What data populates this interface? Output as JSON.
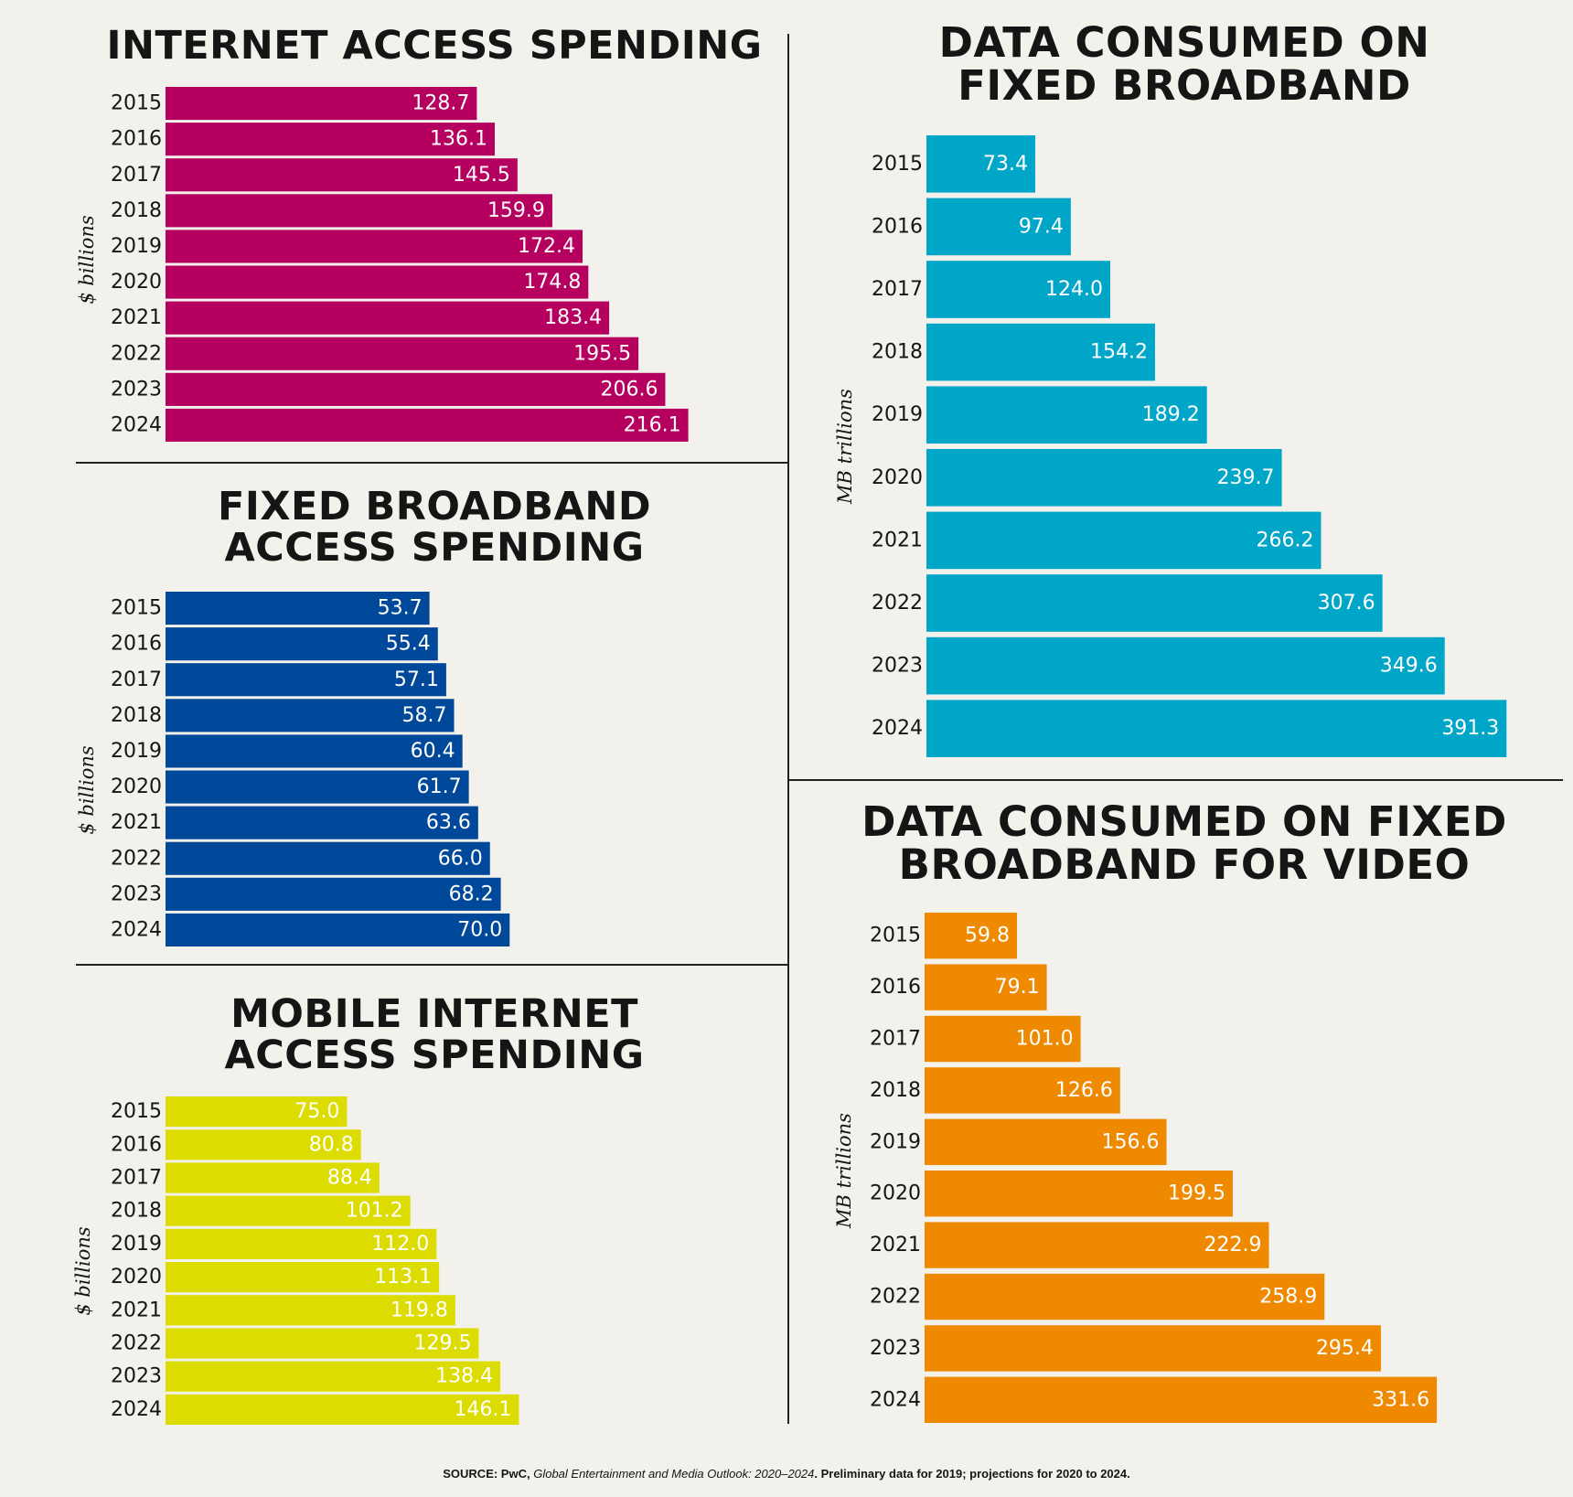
{
  "charts": [
    {
      "id": "p1",
      "title_lines": [
        "INTERNET ACCESS SPENDING"
      ],
      "ylabel": "$ billions",
      "color": "#b5005f",
      "chart_data": {
        "type": "bar",
        "orientation": "horizontal",
        "title": "INTERNET ACCESS SPENDING",
        "ylabel": "$ billions",
        "categories": [
          "2015",
          "2016",
          "2017",
          "2018",
          "2019",
          "2020",
          "2021",
          "2022",
          "2023",
          "2024"
        ],
        "values": [
          128.7,
          136.1,
          145.5,
          159.9,
          172.4,
          174.8,
          183.4,
          195.5,
          206.6,
          216.1
        ],
        "data_labels": [
          "128.7",
          "136.1",
          "145.5",
          "159.9",
          "172.4",
          "174.8",
          "183.4",
          "195.5",
          "206.6",
          "216.1"
        ]
      }
    },
    {
      "id": "p2",
      "title_lines": [
        "FIXED BROADBAND",
        "ACCESS SPENDING"
      ],
      "ylabel": "$ billions",
      "color": "#00489a",
      "chart_data": {
        "type": "bar",
        "orientation": "horizontal",
        "title": "FIXED BROADBAND ACCESS SPENDING",
        "ylabel": "$ billions",
        "categories": [
          "2015",
          "2016",
          "2017",
          "2018",
          "2019",
          "2020",
          "2021",
          "2022",
          "2023",
          "2024"
        ],
        "values": [
          53.7,
          55.4,
          57.1,
          58.7,
          60.4,
          61.7,
          63.6,
          66.0,
          68.2,
          70.0
        ],
        "data_labels": [
          "53.7",
          "55.4",
          "57.1",
          "58.7",
          "60.4",
          "61.7",
          "63.6",
          "66.0",
          "68.2",
          "70.0"
        ]
      }
    },
    {
      "id": "p3",
      "title_lines": [
        "MOBILE INTERNET",
        "ACCESS SPENDING"
      ],
      "ylabel": "$ billions",
      "color": "#dddc00",
      "chart_data": {
        "type": "bar",
        "orientation": "horizontal",
        "title": "MOBILE INTERNET ACCESS SPENDING",
        "ylabel": "$ billions",
        "categories": [
          "2015",
          "2016",
          "2017",
          "2018",
          "2019",
          "2020",
          "2021",
          "2022",
          "2023",
          "2024"
        ],
        "values": [
          75.0,
          80.8,
          88.4,
          101.2,
          112.0,
          113.1,
          119.8,
          129.5,
          138.4,
          146.1
        ],
        "data_labels": [
          "75.0",
          "80.8",
          "88.4",
          "101.2",
          "112.0",
          "113.1",
          "119.8",
          "129.5",
          "138.4",
          "146.1"
        ]
      }
    },
    {
      "id": "p4",
      "title_lines": [
        "DATA CONSUMED ON",
        "FIXED BROADBAND"
      ],
      "ylabel": "MB trillions",
      "color": "#00a6c8",
      "chart_data": {
        "type": "bar",
        "orientation": "horizontal",
        "title": "DATA CONSUMED ON FIXED BROADBAND",
        "ylabel": "MB trillions",
        "categories": [
          "2015",
          "2016",
          "2017",
          "2018",
          "2019",
          "2020",
          "2021",
          "2022",
          "2023",
          "2024"
        ],
        "values": [
          73.4,
          97.4,
          124.0,
          154.2,
          189.2,
          239.7,
          266.2,
          307.6,
          349.6,
          391.3
        ],
        "data_labels": [
          "73.4",
          "97.4",
          "124.0",
          "154.2",
          "189.2",
          "239.7",
          "266.2",
          "307.6",
          "349.6",
          "391.3"
        ]
      }
    },
    {
      "id": "p5",
      "title_lines": [
        "DATA CONSUMED ON FIXED",
        "BROADBAND FOR VIDEO"
      ],
      "ylabel": "MB trillions",
      "color": "#ef8a00",
      "chart_data": {
        "type": "bar",
        "orientation": "horizontal",
        "title": "DATA CONSUMED ON FIXED BROADBAND FOR VIDEO",
        "ylabel": "MB trillions",
        "categories": [
          "2015",
          "2016",
          "2017",
          "2018",
          "2019",
          "2020",
          "2021",
          "2022",
          "2023",
          "2024"
        ],
        "values": [
          59.8,
          79.1,
          101.0,
          126.6,
          156.6,
          199.5,
          222.9,
          258.9,
          295.4,
          331.6
        ],
        "data_labels": [
          "59.8",
          "79.1",
          "101.0",
          "126.6",
          "156.6",
          "199.5",
          "222.9",
          "258.9",
          "295.4",
          "331.6"
        ]
      }
    }
  ],
  "source": {
    "prefix": "SOURCE: PwC, ",
    "publication": "Global Entertainment and Media Outlook: 2020–2024",
    "suffix": ". Preliminary data for 2019; projections for 2020 to 2024."
  }
}
